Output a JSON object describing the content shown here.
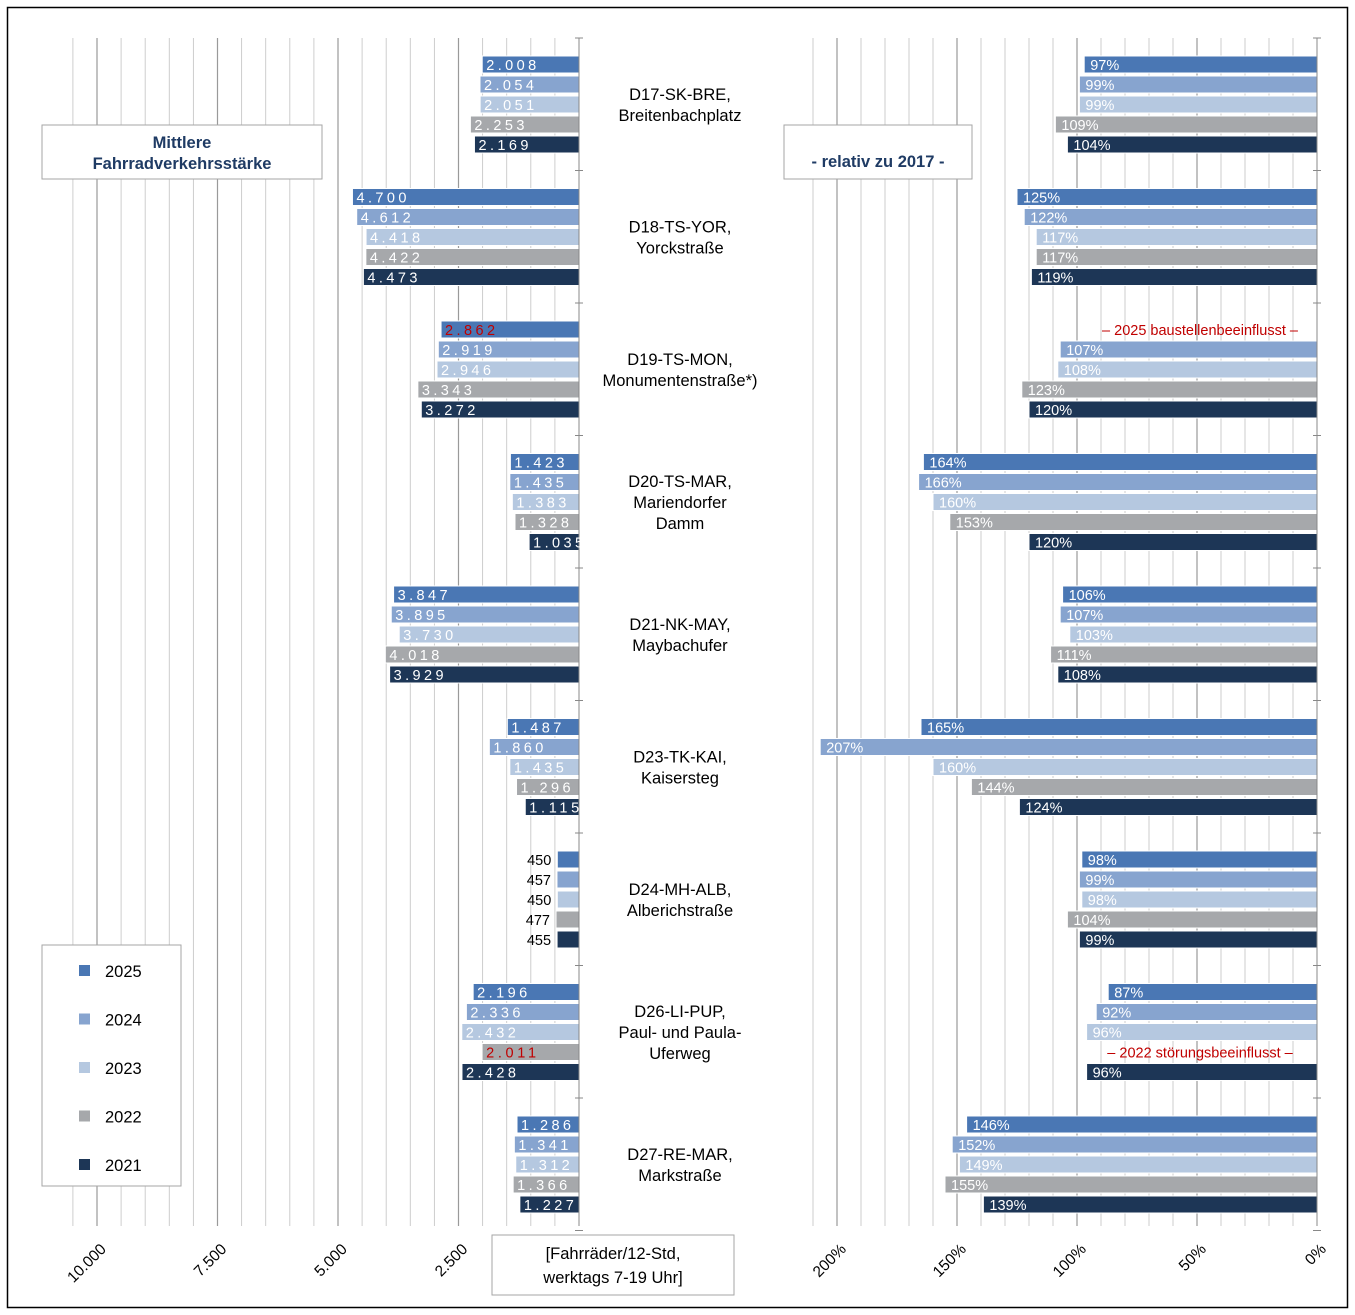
{
  "chart_data": {
    "type": "bar",
    "orientation": "horizontal",
    "title_left": [
      "Mittlere",
      "Fahrradverkehrsstärke"
    ],
    "title_right": "- relativ zu 2017 -",
    "unit_label": [
      "[Fahrräder/12-Std,",
      "werktags 7-19 Uhr]"
    ],
    "series": [
      {
        "name": "2025",
        "color": "#4a77b4"
      },
      {
        "name": "2024",
        "color": "#87a4cf"
      },
      {
        "name": "2023",
        "color": "#b5c8e0"
      },
      {
        "name": "2022",
        "color": "#a6a8ab"
      },
      {
        "name": "2021",
        "color": "#1d3656"
      }
    ],
    "categories": [
      {
        "label": [
          "D17-SK-BRE,",
          "Breitenbachplatz"
        ],
        "counts": [
          "2.008",
          "2.054",
          "2.051",
          "2.253",
          "2.169"
        ],
        "count_values": [
          2008,
          2054,
          2051,
          2253,
          2169
        ],
        "pcts": [
          "97%",
          "99%",
          "99%",
          "109%",
          "104%"
        ],
        "pct_values": [
          97,
          99,
          99,
          109,
          104
        ]
      },
      {
        "label": [
          "D18-TS-YOR,",
          "Yorckstraße"
        ],
        "counts": [
          "4.700",
          "4.612",
          "4.418",
          "4.422",
          "4.473"
        ],
        "count_values": [
          4700,
          4612,
          4418,
          4422,
          4473
        ],
        "pcts": [
          "125%",
          "122%",
          "117%",
          "117%",
          "119%"
        ],
        "pct_values": [
          125,
          122,
          117,
          117,
          119
        ]
      },
      {
        "label": [
          "D19-TS-MON,",
          "Monumentenstraße*)"
        ],
        "counts": [
          "2.862",
          "2.919",
          "2.946",
          "3.343",
          "3.272"
        ],
        "count_values": [
          2862,
          2919,
          2946,
          3343,
          3272
        ],
        "pcts": [
          null,
          "107%",
          "108%",
          "123%",
          "120%"
        ],
        "pct_values": [
          null,
          107,
          108,
          123,
          120
        ],
        "highlight_count": 0,
        "note": "– 2025 baustellenbeeinflusst –",
        "note_row": 0
      },
      {
        "label": [
          "D20-TS-MAR,",
          "Mariendorfer",
          "Damm"
        ],
        "counts": [
          "1.423",
          "1.435",
          "1.383",
          "1.328",
          "1.035"
        ],
        "count_values": [
          1423,
          1435,
          1383,
          1328,
          1035
        ],
        "pcts": [
          "164%",
          "166%",
          "160%",
          "153%",
          "120%"
        ],
        "pct_values": [
          164,
          166,
          160,
          153,
          120
        ]
      },
      {
        "label": [
          "D21-NK-MAY,",
          "Maybachufer"
        ],
        "counts": [
          "3.847",
          "3.895",
          "3.730",
          "4.018",
          "3.929"
        ],
        "count_values": [
          3847,
          3895,
          3730,
          4018,
          3929
        ],
        "pcts": [
          "106%",
          "107%",
          "103%",
          "111%",
          "108%"
        ],
        "pct_values": [
          106,
          107,
          103,
          111,
          108
        ]
      },
      {
        "label": [
          "D23-TK-KAI,",
          "Kaisersteg"
        ],
        "counts": [
          "1.487",
          "1.860",
          "1.435",
          "1.296",
          "1.115"
        ],
        "count_values": [
          1487,
          1860,
          1435,
          1296,
          1115
        ],
        "pcts": [
          "165%",
          "207%",
          "160%",
          "144%",
          "124%"
        ],
        "pct_values": [
          165,
          207,
          160,
          144,
          124
        ]
      },
      {
        "label": [
          "D24-MH-ALB,",
          "Alberichstraße"
        ],
        "counts": [
          "450",
          "457",
          "450",
          "477",
          "455"
        ],
        "count_values": [
          450,
          457,
          450,
          477,
          455
        ],
        "pcts": [
          "98%",
          "99%",
          "98%",
          "104%",
          "99%"
        ],
        "pct_values": [
          98,
          99,
          98,
          104,
          99
        ],
        "labels_outside": true
      },
      {
        "label": [
          "D26-LI-PUP,",
          "Paul- und Paula-",
          "Uferweg"
        ],
        "counts": [
          "2.196",
          "2.336",
          "2.432",
          "2.011",
          "2.428"
        ],
        "count_values": [
          2196,
          2336,
          2432,
          2011,
          2428
        ],
        "pcts": [
          "87%",
          "92%",
          "96%",
          null,
          "96%"
        ],
        "pct_values": [
          87,
          92,
          96,
          null,
          96
        ],
        "highlight_count": 3,
        "note": "– 2022 störungsbeeinflusst –",
        "note_row": 3
      },
      {
        "label": [
          "D27-RE-MAR,",
          "Markstraße"
        ],
        "counts": [
          "1.286",
          "1.341",
          "1.312",
          "1.366",
          "1.227"
        ],
        "count_values": [
          1286,
          1341,
          1312,
          1366,
          1227
        ],
        "pcts": [
          "146%",
          "152%",
          "149%",
          "155%",
          "139%"
        ],
        "pct_values": [
          146,
          152,
          149,
          155,
          139
        ]
      }
    ],
    "left_axis": {
      "ticks": [
        "10.000",
        "7.500",
        "5.000",
        "2.500"
      ],
      "tick_values": [
        10000,
        7500,
        5000,
        2500
      ],
      "xlim": [
        10500,
        0
      ],
      "reversed": true
    },
    "right_axis": {
      "ticks": [
        "200%",
        "150%",
        "100%",
        "50%",
        "0%"
      ],
      "tick_values": [
        200,
        150,
        100,
        50,
        0
      ],
      "xlim": [
        210,
        0
      ],
      "reversed": true
    },
    "grid": true,
    "legend_position": "bottom-left"
  }
}
